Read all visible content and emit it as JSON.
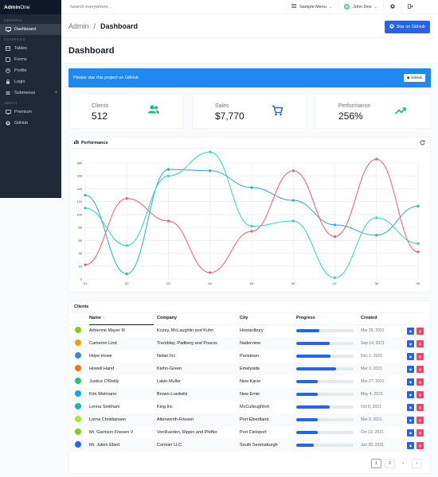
{
  "app": {
    "brand_bold": "Admin",
    "brand_rest": " One"
  },
  "sidebar": {
    "general_label": "GENERAL",
    "examples_label": "EXAMPLES",
    "about_label": "ABOUT",
    "items": [
      {
        "label": "Dashboard",
        "icon": "monitor-icon"
      },
      {
        "label": "Tables",
        "icon": "table-icon"
      },
      {
        "label": "Forms",
        "icon": "forms-icon"
      },
      {
        "label": "Profile",
        "icon": "profile-icon"
      },
      {
        "label": "Login",
        "icon": "lock-icon"
      },
      {
        "label": "Submenus",
        "icon": "menu-icon"
      },
      {
        "label": "Premium",
        "icon": "monitor-icon"
      },
      {
        "label": "GitHub",
        "icon": "github-icon"
      }
    ]
  },
  "topbar": {
    "search_placeholder": "Search everywhere...",
    "sample_menu": "Sample Menu",
    "user_name": "John Doe"
  },
  "breadcrumb": {
    "parent": "Admin",
    "separator": "/",
    "current": "Dashboard"
  },
  "star_button": "Star on GitHub",
  "page_title": "Dashboard",
  "notice": {
    "text": "Please star this project on GitHub",
    "button": "GitHub"
  },
  "stats": [
    {
      "label": "Clients",
      "value": "512",
      "icon": "users-icon",
      "color": "#10b981"
    },
    {
      "label": "Sales",
      "value": "$7,770",
      "icon": "cart-icon",
      "color": "#2563eb"
    },
    {
      "label": "Performance",
      "value": "256%",
      "icon": "trend-up-icon",
      "color": "#10b981"
    }
  ],
  "chart_card_title": "Performance",
  "chart_data": {
    "type": "line",
    "title": "",
    "x": [
      "01",
      "02",
      "03",
      "04",
      "05",
      "06",
      "07",
      "08",
      "09"
    ],
    "ylim": [
      0,
      180
    ],
    "yticks": [
      "0",
      "20",
      "40",
      "60",
      "80",
      "100",
      "120",
      "140",
      "160",
      "180"
    ],
    "grid": true,
    "series": [
      {
        "color": "#2aa5d6",
        "values": [
          130,
          8,
          170,
          168,
          142,
          122,
          84,
          68,
          113
        ]
      },
      {
        "color": "#ef5b6e",
        "values": [
          22,
          125,
          90,
          10,
          74,
          168,
          66,
          186,
          42
        ]
      },
      {
        "color": "#2fd3c1",
        "values": [
          110,
          52,
          160,
          197,
          82,
          90,
          2,
          95,
          55
        ]
      }
    ]
  },
  "table": {
    "title": "Clients",
    "columns": [
      "Name",
      "Company",
      "City",
      "Progress",
      "Created"
    ],
    "sort_marker": "↑",
    "rows": [
      {
        "name": "Adrienne Mayer III",
        "company": "Kozey, McLaughlin and Kuhn",
        "city": "Howardbury",
        "progress": 40,
        "created": "Mar 29, 2021",
        "avatar": "#84cc16"
      },
      {
        "name": "Cameron Lind",
        "company": "Tremblay, Padberg and Pouros",
        "city": "Naderview",
        "progress": 58,
        "created": "Sep 14, 2021",
        "avatar": "#f59e0b"
      },
      {
        "name": "Hope Howe",
        "company": "Nolan Inc",
        "city": "Paristown",
        "progress": 60,
        "created": "Dec 1, 2021",
        "avatar": "#3b82f6"
      },
      {
        "name": "Howell Hand",
        "company": "Kiehn-Green",
        "city": "Emelyside",
        "progress": 70,
        "created": "Mar 3, 2021",
        "avatar": "#f97316"
      },
      {
        "name": "Justice O'Reilly",
        "company": "Lakin-Muller",
        "city": "New Kacie",
        "progress": 38,
        "created": "Mar 27, 2021",
        "avatar": "#22c55e"
      },
      {
        "name": "Kim Weimann",
        "company": "Brown-Lueilwitz",
        "city": "New Emie",
        "progress": 37,
        "created": "May 4, 2021",
        "avatar": "#0ea5e9"
      },
      {
        "name": "Lenna Smitham",
        "company": "King Inc",
        "city": "McCulloughfort",
        "progress": 58,
        "created": "Oct 8, 2021",
        "avatar": "#14b8a6"
      },
      {
        "name": "Lorna Christiansen",
        "company": "Altenwerth-Friesen",
        "city": "Port Elbertland",
        "progress": 38,
        "created": "Mar 9, 2021",
        "avatar": "#a3e635"
      },
      {
        "name": "Mr. Garrison Friesen V",
        "company": "VonRueden, Rippin and Pfeffer",
        "city": "Port Cieloport",
        "progress": 38,
        "created": "Oct 19, 2021",
        "avatar": "#84cc16"
      },
      {
        "name": "Mr. Julien Ebert",
        "company": "Cormier LLC",
        "city": "South Serenaburgh",
        "progress": 30,
        "created": "Jun 25, 2021",
        "avatar": "#2563eb"
      }
    ]
  },
  "pagination": {
    "pages": [
      "1",
      "2"
    ],
    "prev": "‹",
    "next": "›"
  },
  "colors": {
    "accent": "#2563eb",
    "danger": "#ef4565",
    "sidebar": "#1f2937"
  }
}
